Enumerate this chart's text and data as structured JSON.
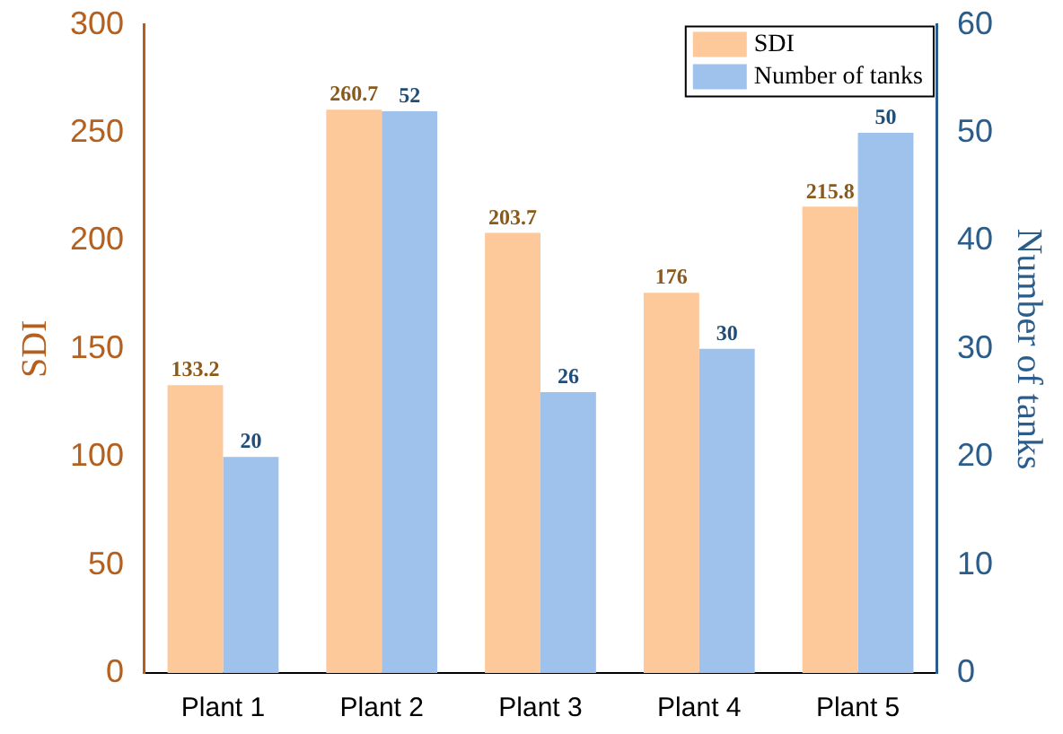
{
  "chart_data": {
    "type": "bar",
    "categories": [
      "Plant 1",
      "Plant 2",
      "Plant 3",
      "Plant 4",
      "Plant 5"
    ],
    "ylabel": "SDI",
    "y2label": "Number of tanks",
    "series": [
      {
        "name": "SDI",
        "color": "#fdc99b",
        "values": [
          133.2,
          260.7,
          203.7,
          176,
          215.8
        ]
      },
      {
        "name": "Number of tanks",
        "color": "#9ec2eb",
        "axis": "y2",
        "values": [
          20,
          52,
          26,
          30,
          50
        ]
      }
    ],
    "ylim": [
      0,
      300
    ],
    "yticks": [
      0,
      50,
      100,
      150,
      200,
      250,
      300
    ],
    "y2lim": [
      0,
      60
    ],
    "y2ticks": [
      0,
      10,
      20,
      30,
      40,
      50,
      60
    ],
    "data_labels": true,
    "legend": "top right",
    "grid": false
  }
}
